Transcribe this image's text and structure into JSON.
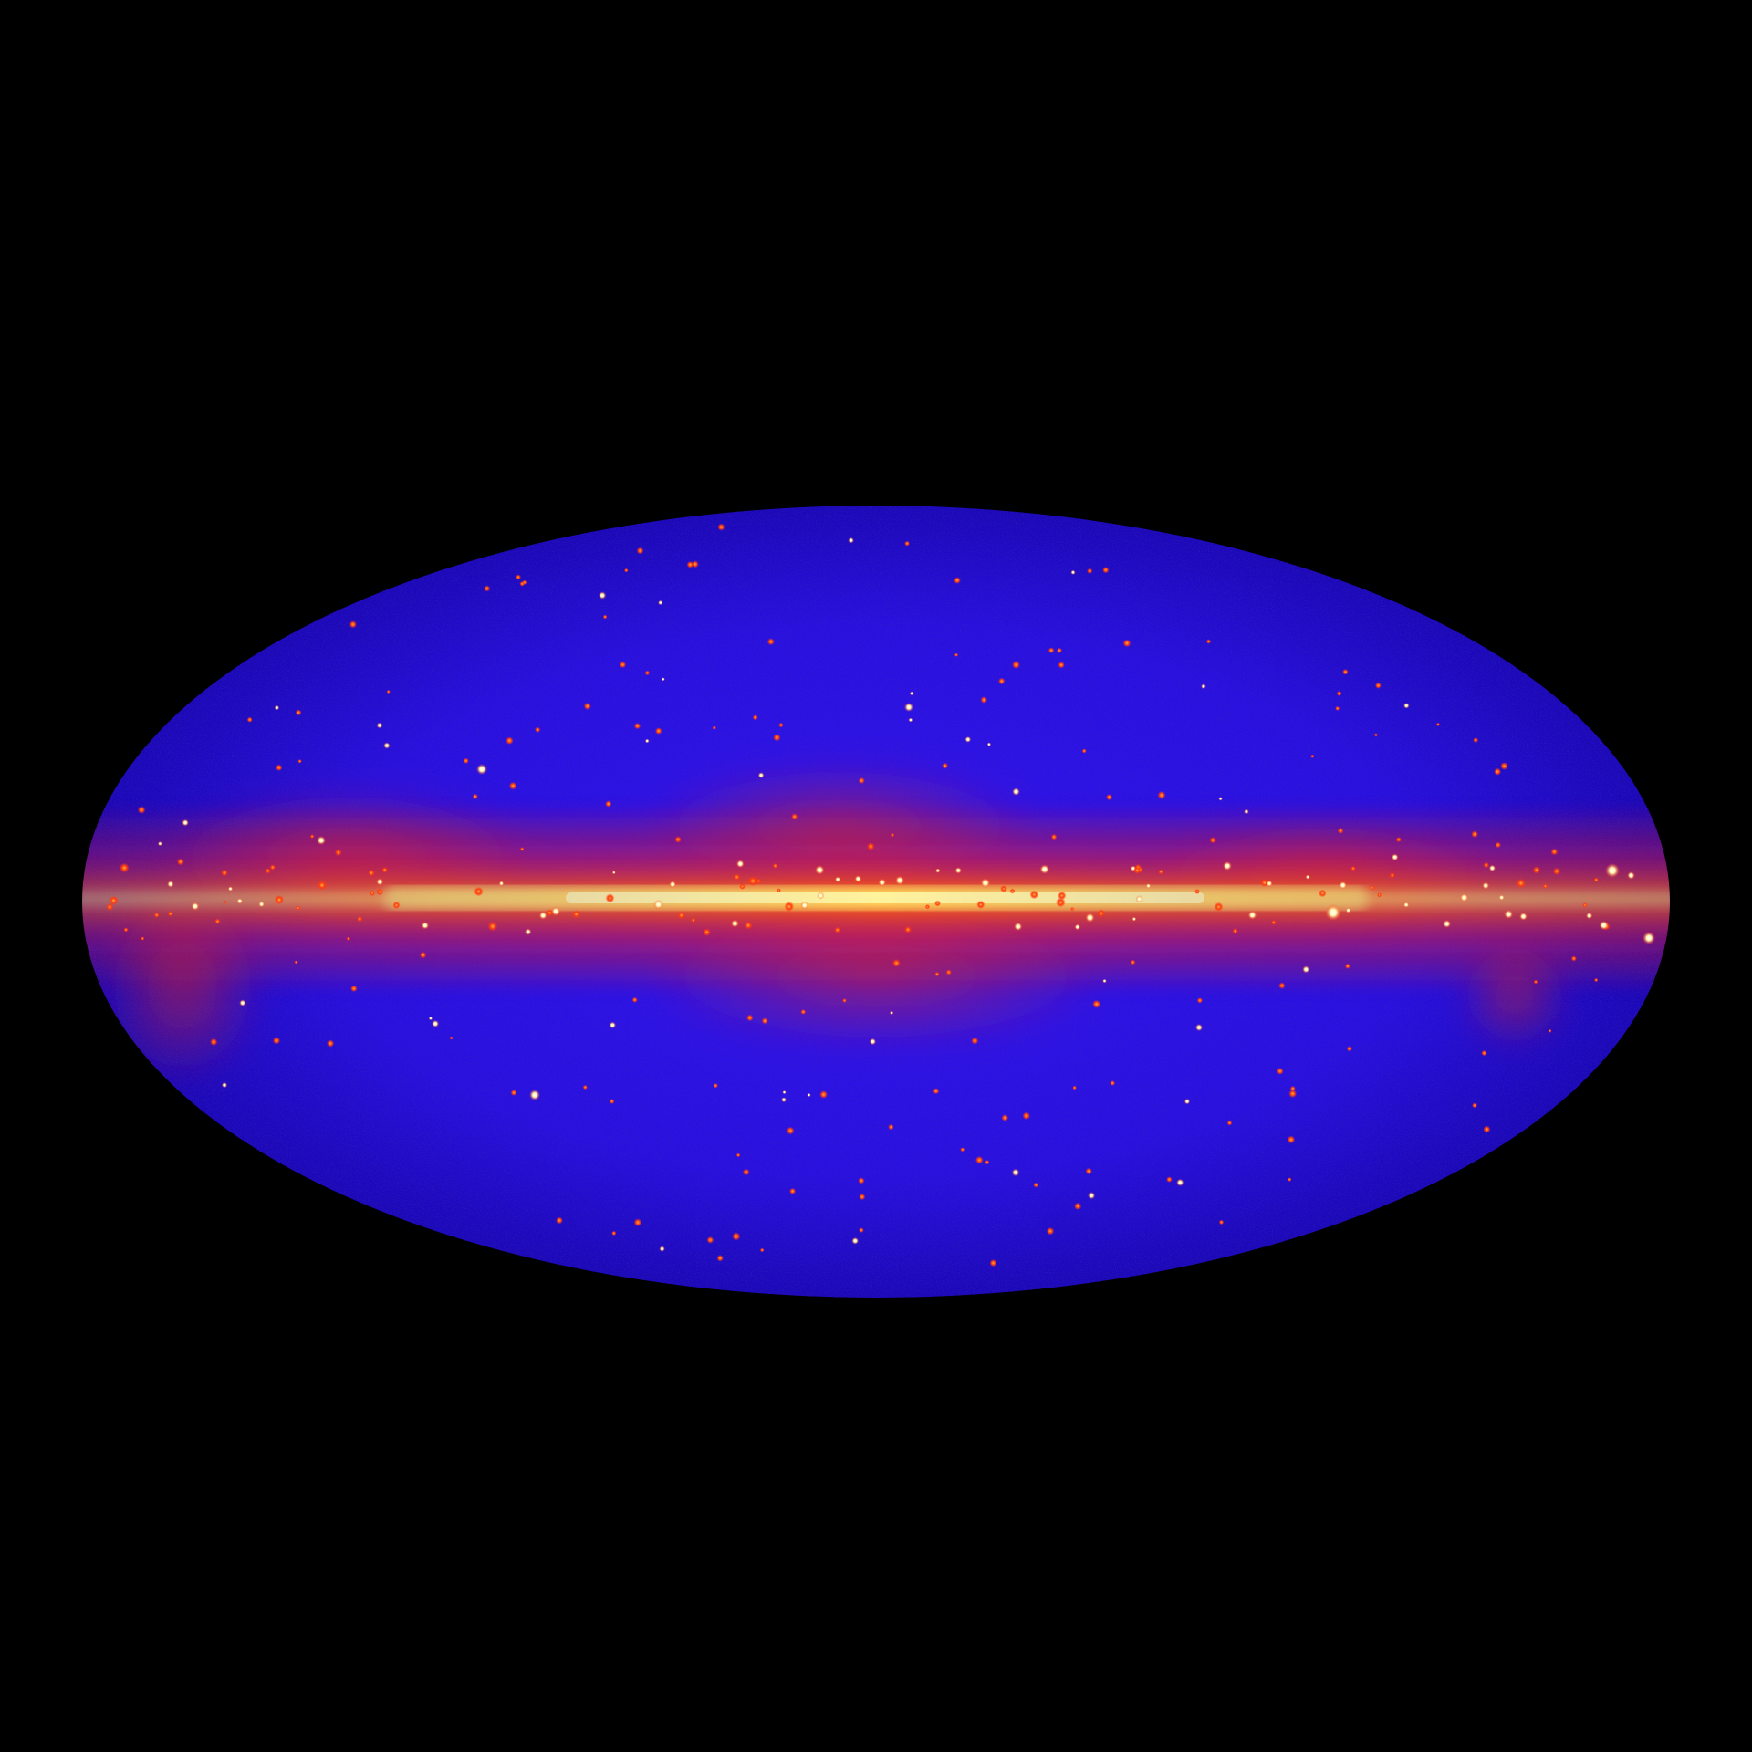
{
  "image": {
    "subject": "all-sky-map",
    "projection": "aitoff-ellipse",
    "content_text": []
  },
  "palette": {
    "background": "#000000",
    "sky_base": "#2a10e8",
    "sky_dark": "#100680",
    "halo": "#ff2a10",
    "band_core": "#ffe060",
    "band_mid": "#ff5a10",
    "source_bright": "#fff6b0",
    "source_mid": "#ff3a10"
  },
  "icons": {
    "galactic_plane": "galactic-plane-band",
    "sources": "point-source-dot"
  }
}
